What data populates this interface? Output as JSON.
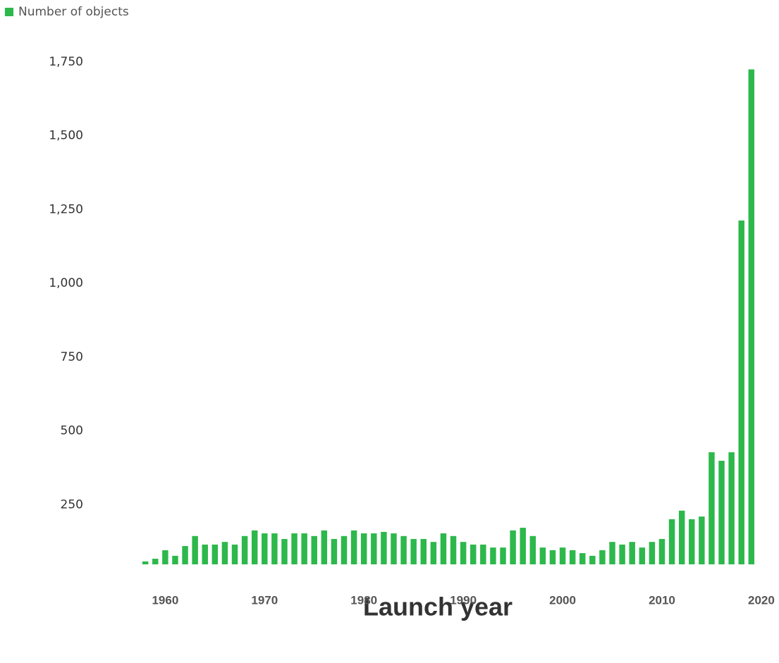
{
  "chart_data": {
    "type": "bar",
    "x_label": "Launch year",
    "series": [
      {
        "name": "Number of objects",
        "color": "#2db84b",
        "values": [
          10,
          19,
          48,
          29,
          62,
          96,
          67,
          67,
          76,
          67,
          96,
          115,
          105,
          105,
          86,
          105,
          105,
          96,
          115,
          86,
          96,
          115,
          105,
          105,
          110,
          105,
          96,
          86,
          86,
          76,
          105,
          96,
          76,
          67,
          67,
          57,
          57,
          115,
          124,
          96,
          57,
          48,
          57,
          48,
          38,
          29,
          48,
          76,
          67,
          76,
          57,
          76,
          86,
          153,
          182,
          153,
          162,
          380,
          351,
          380,
          1165,
          1677
        ]
      }
    ],
    "x": [
      1958,
      1959,
      1960,
      1961,
      1962,
      1963,
      1964,
      1965,
      1966,
      1967,
      1968,
      1969,
      1970,
      1971,
      1972,
      1973,
      1974,
      1975,
      1976,
      1977,
      1978,
      1979,
      1980,
      1981,
      1982,
      1983,
      1984,
      1985,
      1986,
      1987,
      1988,
      1989,
      1990,
      1991,
      1992,
      1993,
      1994,
      1995,
      1996,
      1997,
      1998,
      1999,
      2000,
      2001,
      2002,
      2003,
      2004,
      2005,
      2006,
      2007,
      2008,
      2009,
      2010,
      2011,
      2012,
      2013,
      2014,
      2015,
      2016,
      2017,
      2018,
      2019
    ],
    "xlim": [
      1956,
      2021
    ],
    "xticks": [
      1960,
      1970,
      1980,
      1990,
      2000,
      2010,
      2020
    ],
    "ylim": [
      0,
      1800
    ],
    "yticks": [
      {
        "value": 250,
        "label": "250"
      },
      {
        "value": 500,
        "label": "500"
      },
      {
        "value": 750,
        "label": "750"
      },
      {
        "value": 1000,
        "label": "1,000"
      },
      {
        "value": 1250,
        "label": "1,250"
      },
      {
        "value": 1500,
        "label": "1,500"
      },
      {
        "value": 1750,
        "label": "1,750"
      }
    ],
    "grid": false
  }
}
